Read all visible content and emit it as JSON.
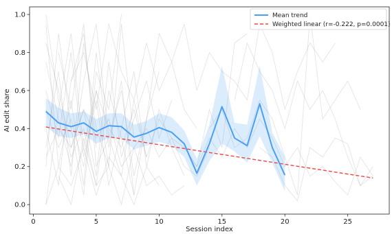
{
  "chart_data": {
    "type": "line",
    "xlabel": "Session index",
    "ylabel": "AI edit share",
    "xlim": [
      -0.3,
      28.3
    ],
    "ylim": [
      -0.05,
      1.04
    ],
    "xticks": [
      "0",
      "5",
      "10",
      "15",
      "20",
      "25"
    ],
    "yticks": [
      "0.0",
      "0.2",
      "0.4",
      "0.6",
      "0.8",
      "1.0"
    ],
    "legend_position": "top-right",
    "grid": false,
    "series": [
      {
        "name": "Mean trend",
        "kind": "line",
        "color": "#4a9ff5",
        "x": [
          1,
          2,
          3,
          4,
          5,
          6,
          7,
          8,
          9,
          10,
          11,
          12,
          13,
          14,
          15,
          16,
          17,
          18,
          19,
          20
        ],
        "values": [
          0.49,
          0.43,
          0.41,
          0.43,
          0.385,
          0.415,
          0.41,
          0.355,
          0.375,
          0.405,
          0.38,
          0.32,
          0.165,
          0.32,
          0.515,
          0.35,
          0.31,
          0.53,
          0.3,
          0.155
        ],
        "band_lower": [
          0.41,
          0.36,
          0.35,
          0.37,
          0.32,
          0.35,
          0.35,
          0.29,
          0.31,
          0.33,
          0.31,
          0.25,
          0.1,
          0.23,
          0.32,
          0.28,
          0.22,
          0.36,
          0.22,
          0.07
        ],
        "band_upper": [
          0.56,
          0.51,
          0.48,
          0.49,
          0.45,
          0.48,
          0.48,
          0.42,
          0.44,
          0.48,
          0.46,
          0.39,
          0.24,
          0.42,
          0.73,
          0.43,
          0.42,
          0.73,
          0.38,
          0.25
        ]
      },
      {
        "name": "Weighted linear (r=-0.222, p=0.0001)",
        "kind": "dashed",
        "color": "#ee4444",
        "x": [
          1,
          27
        ],
        "values": [
          0.408,
          0.14
        ]
      }
    ],
    "background_series": [
      {
        "x": [
          1,
          2,
          3,
          4,
          5,
          6,
          7,
          8,
          9,
          10
        ],
        "values": [
          0.95,
          0.2,
          0.55,
          0.1,
          0.8,
          0.3,
          0.65,
          0.05,
          0.45,
          0.9
        ]
      },
      {
        "x": [
          1,
          2,
          3,
          4,
          5,
          6,
          7,
          8
        ],
        "values": [
          0.3,
          0.7,
          0.15,
          0.85,
          0.4,
          0.2,
          0.95,
          0.35
        ]
      },
      {
        "x": [
          1,
          2,
          3,
          4,
          5,
          6,
          7,
          8,
          9,
          10,
          11,
          12
        ],
        "values": [
          0.6,
          0.35,
          0.8,
          0.25,
          0.55,
          0.1,
          0.4,
          0.7,
          0.2,
          0.5,
          0.3,
          0.15
        ]
      },
      {
        "x": [
          1,
          2,
          3,
          4,
          5,
          6
        ],
        "values": [
          0.0,
          0.5,
          0.9,
          0.3,
          0.6,
          0.2
        ]
      },
      {
        "x": [
          1,
          2,
          3,
          4,
          5,
          6,
          7,
          8,
          9
        ],
        "values": [
          0.75,
          0.45,
          0.2,
          0.65,
          0.95,
          0.35,
          0.15,
          0.55,
          0.25
        ]
      },
      {
        "x": [
          1,
          2,
          3,
          4,
          5,
          6,
          7
        ],
        "values": [
          0.2,
          0.9,
          0.4,
          0.05,
          0.7,
          0.5,
          1.0
        ]
      },
      {
        "x": [
          1,
          2,
          3,
          4,
          5,
          6,
          7,
          8,
          9,
          10,
          11
        ],
        "values": [
          0.85,
          0.6,
          0.3,
          0.5,
          0.15,
          0.75,
          0.25,
          0.45,
          0.65,
          0.35,
          0.55
        ]
      },
      {
        "x": [
          1,
          2,
          3,
          4,
          5
        ],
        "values": [
          0.4,
          0.1,
          0.65,
          0.9,
          0.3
        ]
      },
      {
        "x": [
          1,
          2,
          3,
          4,
          5,
          6,
          7,
          8,
          9,
          10,
          11,
          12,
          13,
          14
        ],
        "values": [
          0.5,
          0.3,
          0.45,
          0.2,
          0.6,
          0.4,
          0.3,
          0.5,
          0.25,
          0.45,
          0.35,
          0.2,
          0.15,
          0.3
        ]
      },
      {
        "x": [
          1,
          2,
          3,
          4,
          5,
          6,
          7,
          8
        ],
        "values": [
          1.0,
          0.55,
          0.25,
          0.4,
          0.1,
          0.6,
          0.35,
          0.05
        ]
      },
      {
        "x": [
          2,
          3,
          4,
          5,
          6,
          7,
          8,
          9,
          10
        ],
        "values": [
          0.8,
          0.5,
          0.95,
          0.2,
          0.35,
          0.6,
          0.15,
          0.45,
          0.7
        ]
      },
      {
        "x": [
          1,
          2,
          3,
          4,
          5,
          6,
          7,
          8,
          9,
          10,
          11,
          12,
          13,
          14,
          15,
          16,
          17
        ],
        "values": [
          0.25,
          0.4,
          0.3,
          0.5,
          0.35,
          0.45,
          0.2,
          0.3,
          0.4,
          0.25,
          0.35,
          0.3,
          0.2,
          0.5,
          0.3,
          0.85,
          0.9
        ]
      },
      {
        "x": [
          10,
          11,
          12,
          13,
          14,
          15,
          16,
          17,
          18,
          19,
          20,
          21,
          22,
          23,
          24
        ],
        "values": [
          0.9,
          0.75,
          0.95,
          0.6,
          0.8,
          0.7,
          0.65,
          0.55,
          0.95,
          0.8,
          0.5,
          0.7,
          0.85,
          0.75,
          0.85
        ]
      },
      {
        "x": [
          12,
          13,
          14,
          15,
          16,
          17,
          18,
          19,
          20,
          21,
          22,
          23,
          24,
          25,
          26,
          27
        ],
        "values": [
          0.3,
          0.2,
          0.35,
          0.25,
          0.4,
          0.3,
          0.45,
          0.35,
          0.2,
          0.3,
          0.15,
          0.2,
          0.12,
          0.05,
          0.25,
          0.15
        ]
      },
      {
        "x": [
          14,
          15,
          16,
          17,
          18,
          19,
          20,
          21,
          22,
          23,
          24,
          25,
          26
        ],
        "values": [
          0.4,
          0.5,
          0.3,
          0.35,
          0.55,
          0.45,
          0.25,
          0.05,
          1.0,
          0.45,
          0.55,
          0.65,
          0.5
        ]
      },
      {
        "x": [
          16,
          17,
          18,
          19,
          20,
          21,
          22,
          23,
          24,
          25,
          26,
          27
        ],
        "values": [
          0.55,
          0.85,
          0.7,
          0.6,
          0.4,
          0.65,
          0.5,
          0.6,
          0.45,
          0.25,
          0.1,
          0.2
        ]
      },
      {
        "x": [
          18,
          19,
          20,
          21,
          22,
          23,
          24,
          25,
          26,
          27
        ],
        "values": [
          0.3,
          0.25,
          0.1,
          0.02,
          0.3,
          0.25,
          0.35,
          0.32,
          0.1,
          0.15
        ]
      },
      {
        "x": [
          1,
          2,
          3,
          4,
          5,
          6,
          7,
          8,
          9,
          10
        ],
        "values": [
          0.0,
          0.2,
          0.1,
          0.3,
          0.05,
          0.25,
          0.15,
          0.0,
          0.2,
          0.1
        ]
      },
      {
        "x": [
          2,
          3,
          4,
          5,
          6,
          7,
          8,
          9,
          10,
          11,
          12
        ],
        "values": [
          0.15,
          0.0,
          0.35,
          0.1,
          0.2,
          0.0,
          0.3,
          0.1,
          0.15,
          0.05,
          0.1
        ]
      },
      {
        "x": [
          3,
          4,
          5,
          6,
          7,
          8,
          9,
          10,
          11,
          12,
          13
        ],
        "values": [
          0.65,
          0.8,
          0.5,
          0.95,
          0.7,
          0.55,
          0.85,
          0.6,
          0.75,
          0.5,
          0.4
        ]
      }
    ]
  }
}
